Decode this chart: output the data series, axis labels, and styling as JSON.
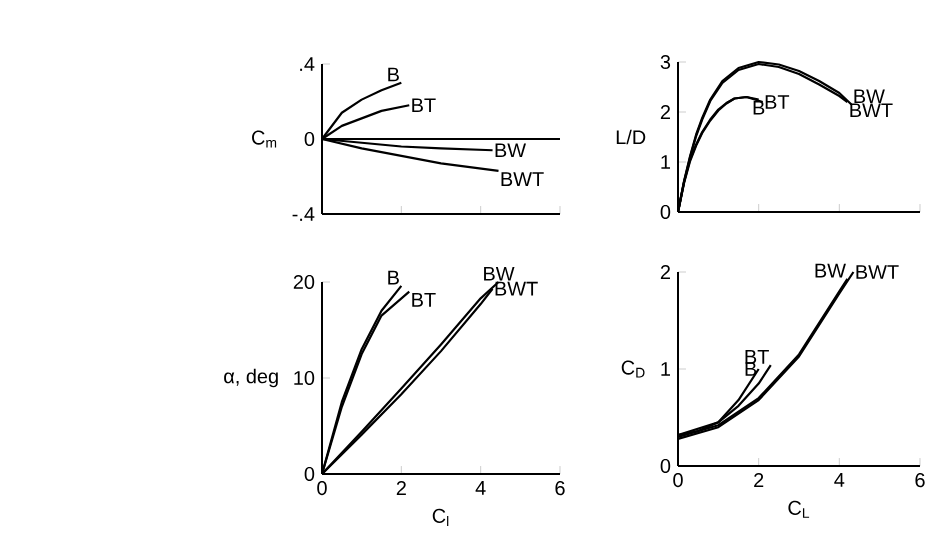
{
  "chart_data": [
    {
      "type": "line",
      "ylabel": "C$_{m}$",
      "xlim": [
        0,
        6
      ],
      "ylim": [
        -0.4,
        0.4
      ],
      "xticks": [
        2,
        4,
        6
      ],
      "yticks": [
        {
          "value": -0.4,
          "label": "-.4"
        },
        0,
        {
          "value": 0.4,
          "label": ".4"
        }
      ],
      "tick_labels": "y",
      "ref_lines": [
        {
          "axis": "y",
          "value": 0,
          "color": "#000000"
        }
      ],
      "series": [
        {
          "name": "B",
          "color": "#000000",
          "x": [
            0,
            0.5,
            1,
            1.5,
            2
          ],
          "values": [
            0,
            0.14,
            0.21,
            0.26,
            0.3
          ]
        },
        {
          "name": "BT",
          "color": "#000000",
          "x": [
            0,
            0.5,
            1,
            1.5,
            2.2
          ],
          "values": [
            0,
            0.07,
            0.11,
            0.15,
            0.18
          ]
        },
        {
          "name": "BW",
          "color": "#000000",
          "x": [
            0,
            1,
            2,
            3,
            4.3
          ],
          "values": [
            0,
            -0.02,
            -0.04,
            -0.05,
            -0.06
          ]
        },
        {
          "name": "BWT",
          "color": "#000000",
          "x": [
            0,
            1,
            2,
            3,
            4.45
          ],
          "values": [
            0,
            -0.05,
            -0.09,
            -0.13,
            -0.17
          ]
        }
      ]
    },
    {
      "type": "line",
      "ylabel": "L/D",
      "xlim": [
        0,
        6
      ],
      "ylim": [
        0,
        3
      ],
      "xticks": [
        2,
        4,
        6
      ],
      "yticks": [
        0,
        1,
        2,
        3
      ],
      "tick_labels": "y",
      "series": [
        {
          "name": "B",
          "color": "#000000",
          "x": [
            0,
            0.15,
            0.3,
            0.45,
            0.6,
            0.8,
            1.0,
            1.2,
            1.4,
            1.7,
            2.0
          ],
          "values": [
            0,
            0.6,
            1.05,
            1.35,
            1.6,
            1.85,
            2.05,
            2.18,
            2.27,
            2.3,
            2.25
          ]
        },
        {
          "name": "BT",
          "color": "#000000",
          "x": [
            0,
            0.15,
            0.3,
            0.45,
            0.6,
            0.8,
            1.0,
            1.2,
            1.4,
            1.7,
            2.1
          ],
          "values": [
            0,
            0.58,
            1.02,
            1.33,
            1.58,
            1.83,
            2.03,
            2.17,
            2.27,
            2.3,
            2.2
          ]
        },
        {
          "name": "BW",
          "color": "#000000",
          "x": [
            0,
            0.15,
            0.3,
            0.45,
            0.6,
            0.8,
            1.1,
            1.5,
            2.0,
            2.5,
            3.0,
            3.5,
            4.0,
            4.3
          ],
          "values": [
            0,
            0.62,
            1.12,
            1.55,
            1.88,
            2.25,
            2.62,
            2.88,
            3.0,
            2.95,
            2.82,
            2.62,
            2.38,
            2.15
          ]
        },
        {
          "name": "BWT",
          "color": "#000000",
          "x": [
            0,
            0.15,
            0.3,
            0.45,
            0.6,
            0.8,
            1.1,
            1.5,
            2.0,
            2.5,
            3.0,
            3.5,
            4.0,
            4.2
          ],
          "values": [
            0,
            0.6,
            1.1,
            1.52,
            1.85,
            2.22,
            2.58,
            2.84,
            2.96,
            2.9,
            2.76,
            2.55,
            2.32,
            2.2
          ]
        }
      ]
    },
    {
      "type": "line",
      "ylabel": "α, deg",
      "xlabel": "C$_{l}$",
      "xlim": [
        0,
        6
      ],
      "ylim": [
        0,
        20
      ],
      "xticks": [
        0,
        2,
        4,
        6
      ],
      "yticks": [
        0,
        10,
        20
      ],
      "series": [
        {
          "name": "B",
          "color": "#000000",
          "x": [
            0,
            0.5,
            1,
            1.5,
            2.0
          ],
          "values": [
            0,
            7.5,
            13,
            17,
            19.6
          ]
        },
        {
          "name": "BT",
          "color": "#000000",
          "x": [
            0,
            0.5,
            1,
            1.5,
            2.2
          ],
          "values": [
            0,
            7,
            12.5,
            16.5,
            19
          ]
        },
        {
          "name": "BW",
          "color": "#000000",
          "x": [
            0,
            1,
            2,
            3,
            4,
            4.45
          ],
          "values": [
            0,
            4.4,
            8.9,
            13.5,
            18.3,
            20
          ]
        },
        {
          "name": "BWT",
          "color": "#000000",
          "x": [
            0,
            1,
            2,
            3,
            4,
            4.3
          ],
          "values": [
            0,
            4.1,
            8.3,
            12.8,
            17.7,
            19.3
          ]
        }
      ]
    },
    {
      "type": "line",
      "ylabel": "C$_{D}$",
      "xlabel": "C$_{L}$",
      "xlim": [
        0,
        6
      ],
      "ylim": [
        0,
        2
      ],
      "xticks": [
        0,
        2,
        4,
        6
      ],
      "yticks": [
        0,
        1,
        2
      ],
      "series": [
        {
          "name": "B",
          "color": "#000000",
          "x": [
            0,
            0.5,
            1,
            1.5,
            2
          ],
          "values": [
            0.32,
            0.36,
            0.45,
            0.68,
            1.0
          ]
        },
        {
          "name": "BT",
          "color": "#000000",
          "x": [
            0,
            1,
            1.5,
            2,
            2.3
          ],
          "values": [
            0.32,
            0.45,
            0.62,
            0.85,
            1.04
          ]
        },
        {
          "name": "BW",
          "color": "#000000",
          "x": [
            0,
            1,
            2,
            3,
            4,
            4.2
          ],
          "values": [
            0.3,
            0.42,
            0.7,
            1.15,
            1.8,
            1.93
          ]
        },
        {
          "name": "BWT",
          "color": "#000000",
          "x": [
            0,
            1,
            2,
            3,
            4,
            4.35
          ],
          "values": [
            0.28,
            0.4,
            0.68,
            1.13,
            1.78,
            2.0
          ]
        }
      ]
    }
  ]
}
